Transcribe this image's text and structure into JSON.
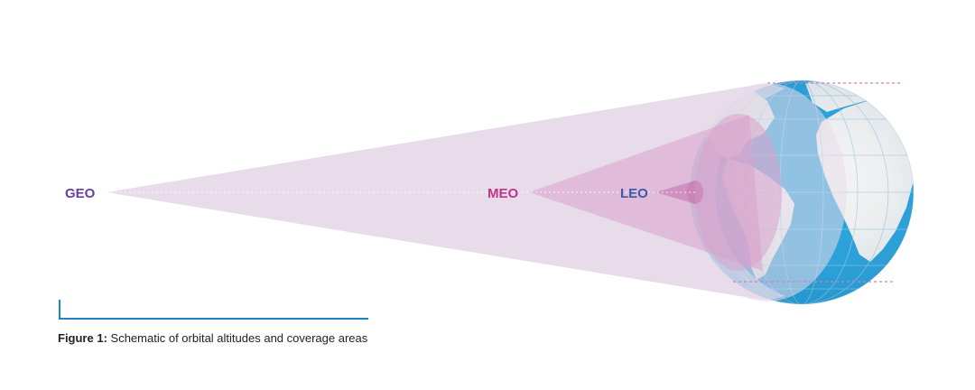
{
  "diagram": {
    "labels": {
      "geo": "GEO",
      "meo": "MEO",
      "leo": "LEO"
    }
  },
  "caption": {
    "prefix": "Figure 1:",
    "text": "Schematic of orbital altitudes and coverage areas"
  },
  "colors": {
    "geo": "#6b3fa0",
    "meo": "#c0338a",
    "leo": "#3a5aa8",
    "geo_cone": "#e8dcea",
    "meo_cone": "#e7b9d8",
    "leo_cone": "#cf8fbe",
    "ocean": "#1fa0dc",
    "land": "#f2f2f2",
    "accent_line": "#1b82c8"
  }
}
